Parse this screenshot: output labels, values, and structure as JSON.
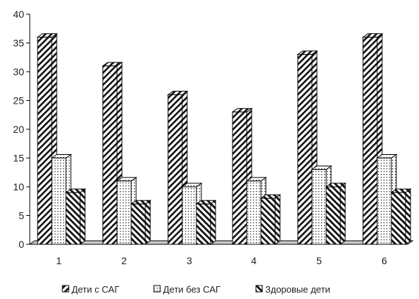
{
  "chart_data": {
    "type": "bar",
    "title": "",
    "xlabel": "",
    "ylabel": "",
    "categories": [
      "1",
      "2",
      "3",
      "4",
      "5",
      "6"
    ],
    "series": [
      {
        "name": "Дети с САГ",
        "values": [
          36,
          31,
          26,
          23,
          33,
          36
        ],
        "pattern": "diagonal-hatch"
      },
      {
        "name": "Дети без САГ",
        "values": [
          15,
          11,
          10,
          11,
          13,
          15
        ],
        "pattern": "dots"
      },
      {
        "name": "Здоровые дети",
        "values": [
          9,
          7,
          7,
          8,
          10,
          9
        ],
        "pattern": "back-diagonal-hatch"
      }
    ],
    "ylim": [
      0,
      40
    ],
    "yticks": [
      "0",
      "5",
      "10",
      "15",
      "20",
      "25",
      "30",
      "35",
      "40"
    ],
    "grid": false,
    "legend_position": "bottom",
    "three_d": true
  }
}
